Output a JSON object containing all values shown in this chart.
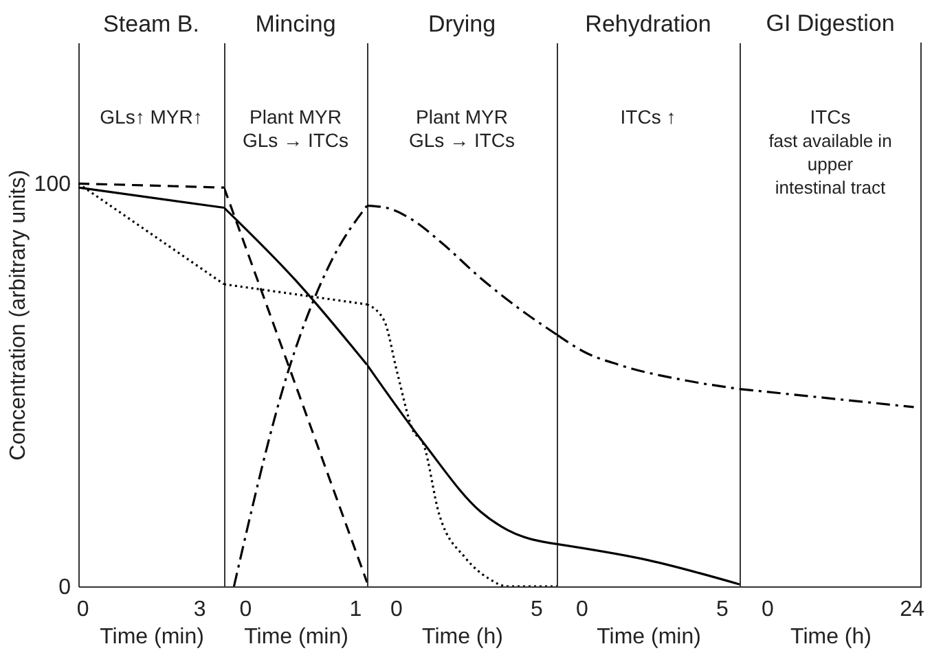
{
  "chart_data": [
    {
      "type": "line",
      "title": "Steam B.",
      "xlabel": "Time (min)",
      "ylabel": "Concentration (arbitrary units)",
      "xlim": [
        -0.1,
        3.64
      ],
      "xticks": [
        0,
        3
      ],
      "ylim": [
        0,
        135
      ],
      "yticks": [
        0,
        100
      ],
      "grid": false,
      "annotations": [
        "GLs↑ MYR↑"
      ],
      "series": [
        {
          "color": "#000000",
          "line_style": "solid",
          "x": [
            -0.1,
            3.64
          ],
          "values": [
            99,
            94
          ]
        },
        {
          "color": "#000000",
          "line_style": "dashed",
          "x": [
            -0.1,
            3.64
          ],
          "values": [
            100,
            99
          ]
        },
        {
          "color": "#000000",
          "line_style": "dotted",
          "x": [
            -0.1,
            3.64
          ],
          "values": [
            100,
            75
          ]
        }
      ]
    },
    {
      "type": "line",
      "title": "Mincing",
      "xlabel": "Time (min)",
      "xlim": [
        -0.19,
        1.11
      ],
      "xticks": [
        0,
        1
      ],
      "ylim": [
        0,
        135
      ],
      "tick_labels": "x",
      "grid": false,
      "annotations": [
        "Plant MYR\nGLs  →  ITCs"
      ],
      "series": [
        {
          "color": "#000000",
          "line_style": "solid",
          "x": [
            -0.19,
            0.46,
            1.11
          ],
          "values": [
            94,
            76,
            55
          ]
        },
        {
          "color": "#000000",
          "line_style": "dashed",
          "x": [
            -0.19,
            1.11
          ],
          "values": [
            99,
            1
          ]
        },
        {
          "color": "#000000",
          "line_style": "dotted",
          "x": [
            -0.19,
            1.11
          ],
          "values": [
            75,
            70
          ]
        },
        {
          "color": "#000000",
          "line_style": "dashdot",
          "x": [
            -0.1,
            0.4,
            0.79,
            1.11
          ],
          "values": [
            0,
            54,
            81,
            94.5
          ]
        }
      ]
    },
    {
      "type": "line",
      "title": "Drying",
      "xlabel": "Time (h)",
      "xlim": [
        -1.03,
        5.74
      ],
      "xticks": [
        0,
        5
      ],
      "ylim": [
        0,
        135
      ],
      "tick_labels": "x",
      "grid": false,
      "annotations": [
        "Plant MYR\nGLs  →  ITCs"
      ],
      "series": [
        {
          "color": "#000000",
          "line_style": "solid",
          "x": [
            -1.03,
            1.0,
            3.03,
            3.98,
            5.74
          ],
          "values": [
            55,
            35.5,
            18.5,
            14,
            10.5
          ]
        },
        {
          "color": "#000000",
          "line_style": "dotted",
          "x": [
            -1.03,
            -0.42,
            0.05,
            0.59,
            1.0,
            1.54,
            2.49,
            3.3,
            3.98,
            5.74
          ],
          "values": [
            70,
            66,
            53,
            39,
            35,
            18,
            7,
            2,
            0,
            0
          ]
        },
        {
          "color": "#000000",
          "line_style": "dashdot",
          "x": [
            -1.03,
            -0.35,
            0.59,
            1.68,
            3.03,
            4.39,
            5.74
          ],
          "values": [
            94.5,
            94,
            91,
            85,
            76.5,
            69,
            62.5
          ]
        }
      ]
    },
    {
      "type": "line",
      "title": "Rehydration",
      "xlabel": "Time (min)",
      "xlim": [
        -0.88,
        5.64
      ],
      "xticks": [
        0,
        5
      ],
      "ylim": [
        0,
        135
      ],
      "tick_labels": "x",
      "grid": false,
      "annotations": [
        "ITCs  ↑"
      ],
      "series": [
        {
          "color": "#000000",
          "line_style": "solid",
          "x": [
            -0.88,
            2.38,
            5.64
          ],
          "values": [
            10.5,
            6.5,
            0.5
          ]
        },
        {
          "color": "#000000",
          "line_style": "dashdot",
          "x": [
            -0.88,
            0.16,
            1.34,
            3.81,
            5.64
          ],
          "values": [
            62.5,
            58,
            55,
            51,
            49
          ]
        }
      ]
    },
    {
      "type": "line",
      "title": "GI Digestion",
      "xlabel": "Time (h)",
      "xlim": [
        -4.57,
        25.6
      ],
      "xticks": [
        0,
        24
      ],
      "ylim": [
        0,
        135
      ],
      "tick_labels": "x",
      "grid": false,
      "annotations": [
        "ITCs\nfast available in\nupper\nintestinal tract"
      ],
      "series": [
        {
          "color": "#000000",
          "line_style": "dashdot",
          "x": [
            -4.57,
            24.4
          ],
          "values": [
            49,
            44.5
          ]
        }
      ]
    }
  ]
}
